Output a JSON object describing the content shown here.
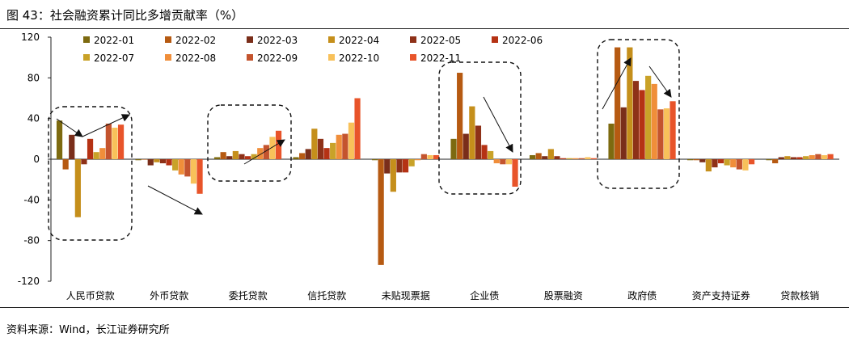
{
  "title": "图 43：社会融资累计同比多增贡献率（%）",
  "source": "资料来源：Wind，长江证券研究所",
  "chart_data": {
    "type": "bar",
    "categories": [
      "人民币贷款",
      "外币贷款",
      "委托贷款",
      "信托贷款",
      "未贴现票据",
      "企业债",
      "股票融资",
      "政府债",
      "资产支持证券",
      "贷款核销"
    ],
    "ylim": [
      -120,
      120
    ],
    "yticks": [
      120,
      80,
      40,
      0,
      -40,
      -80,
      -120
    ],
    "ytick_labels": [
      "120",
      "80",
      "40",
      "0",
      "-40",
      "-80",
      "-120"
    ],
    "grid": false,
    "legend_position": "top-left",
    "series": [
      {
        "name": "2022-01",
        "color": "#7d6a10",
        "values": [
          38,
          -1,
          2,
          2,
          -1,
          20,
          4,
          35,
          -1,
          -1
        ]
      },
      {
        "name": "2022-02",
        "color": "#b65a12",
        "values": [
          -10,
          0,
          7,
          6,
          -104,
          85,
          6,
          110,
          -1,
          -4
        ]
      },
      {
        "name": "2022-03",
        "color": "#7a2e1a",
        "values": [
          24,
          -6,
          3,
          10,
          -14,
          25,
          3,
          51,
          -3,
          2
        ]
      },
      {
        "name": "2022-04",
        "color": "#c58f1b",
        "values": [
          -57,
          -3,
          8,
          30,
          -32,
          52,
          10,
          110,
          -12,
          3
        ]
      },
      {
        "name": "2022-05",
        "color": "#8e3118",
        "values": [
          -5,
          -4,
          5,
          20,
          -13,
          33,
          3,
          77,
          -8,
          2
        ]
      },
      {
        "name": "2022-06",
        "color": "#b53214",
        "values": [
          20,
          -6,
          3,
          11,
          -13,
          14,
          1,
          68,
          -4,
          2
        ]
      },
      {
        "name": "2022-07",
        "color": "#c9a228",
        "values": [
          7,
          -11,
          5,
          16,
          -7,
          8,
          1,
          82,
          -6,
          3
        ]
      },
      {
        "name": "2022-08",
        "color": "#f08e3a",
        "values": [
          11,
          -15,
          11,
          24,
          -1,
          -4,
          1,
          74,
          -8,
          4
        ]
      },
      {
        "name": "2022-09",
        "color": "#c4542e",
        "values": [
          35,
          -17,
          14,
          25,
          5,
          -5,
          1,
          49,
          -10,
          5
        ]
      },
      {
        "name": "2022-10",
        "color": "#f8c15a",
        "values": [
          31,
          -24,
          22,
          36,
          4,
          -5,
          2,
          50,
          -11,
          4
        ]
      },
      {
        "name": "2022-11",
        "color": "#e8542a",
        "values": [
          34,
          -34,
          28,
          60,
          4,
          -27,
          1,
          57,
          -5,
          5
        ]
      }
    ]
  }
}
